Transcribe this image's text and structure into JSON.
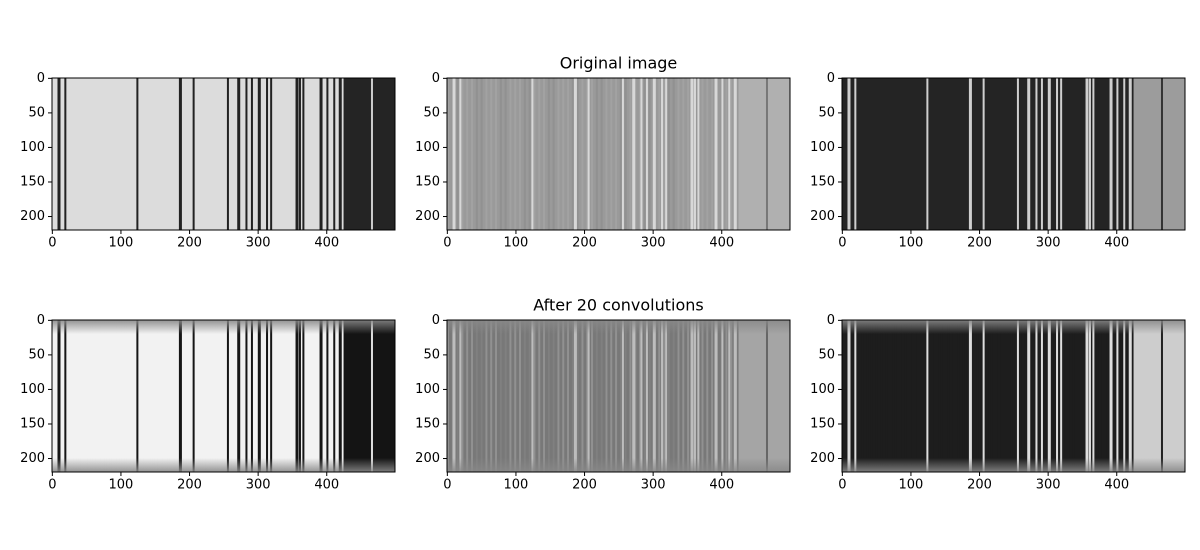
{
  "chart_data": [
    {
      "type": "image",
      "xlim": [
        -0.5,
        499.5
      ],
      "ylim": [
        219.5,
        -0.5
      ],
      "xticks": [
        0,
        100,
        200,
        300,
        400
      ],
      "yticks": [
        0,
        50,
        100,
        150,
        200
      ]
    },
    {
      "type": "image",
      "title": "Original image",
      "xlim": [
        -0.5,
        499.5
      ],
      "ylim": [
        219.5,
        -0.5
      ],
      "xticks": [
        0,
        100,
        200,
        300,
        400
      ],
      "yticks": [
        0,
        50,
        100,
        150,
        200
      ]
    },
    {
      "type": "image",
      "xlim": [
        -0.5,
        499.5
      ],
      "ylim": [
        219.5,
        -0.5
      ],
      "xticks": [
        0,
        100,
        200,
        300,
        400
      ],
      "yticks": [
        0,
        50,
        100,
        150,
        200
      ]
    },
    {
      "type": "image",
      "xlim": [
        -0.5,
        499.5
      ],
      "ylim": [
        219.5,
        -0.5
      ],
      "xticks": [
        0,
        100,
        200,
        300,
        400
      ],
      "yticks": [
        0,
        50,
        100,
        150,
        200
      ]
    },
    {
      "type": "image",
      "title": "After 20 convolutions",
      "xlim": [
        -0.5,
        499.5
      ],
      "ylim": [
        219.5,
        -0.5
      ],
      "xticks": [
        0,
        100,
        200,
        300,
        400
      ],
      "yticks": [
        0,
        50,
        100,
        150,
        200
      ]
    },
    {
      "type": "image",
      "xlim": [
        -0.5,
        499.5
      ],
      "ylim": [
        219.5,
        -0.5
      ],
      "xticks": [
        0,
        100,
        200,
        300,
        400
      ],
      "yticks": [
        0,
        50,
        100,
        150,
        200
      ]
    }
  ]
}
